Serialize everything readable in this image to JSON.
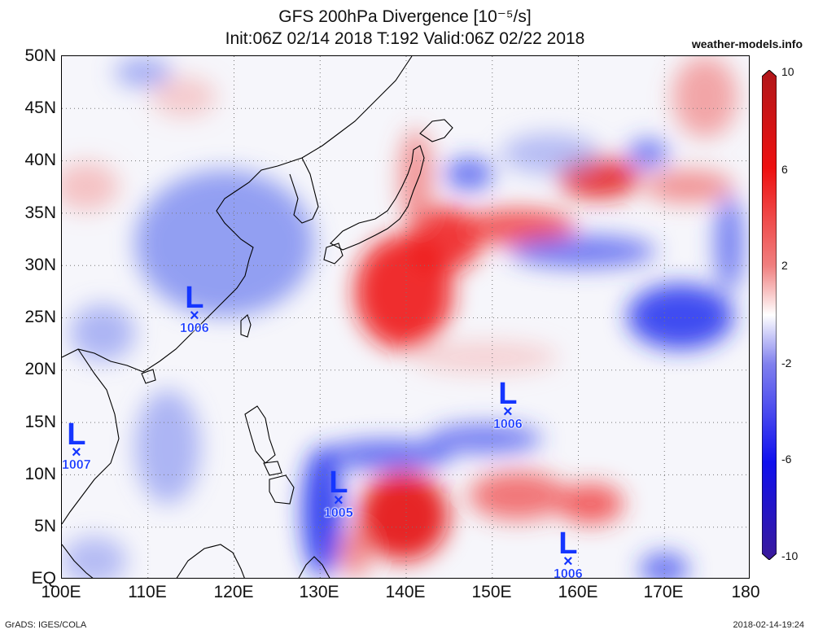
{
  "title_line1": "GFS 200hPa Divergence [10⁻⁵/s]",
  "title_line2": "Init:06Z 02/14 2018 T:192 Valid:06Z 02/22 2018",
  "site": "weather-models.info",
  "y_axis_labels": [
    "50N",
    "45N",
    "40N",
    "35N",
    "30N",
    "25N",
    "20N",
    "15N",
    "10N",
    "5N",
    "EQ"
  ],
  "x_axis_labels": [
    "100E",
    "110E",
    "120E",
    "130E",
    "140E",
    "150E",
    "160E",
    "170E",
    "180"
  ],
  "extent": {
    "lon_min": 100,
    "lon_max": 180,
    "lat_min": 0,
    "lat_max": 50
  },
  "colorbar": {
    "labels": [
      "10",
      "6",
      "2",
      "-2",
      "-6",
      "-10"
    ],
    "colors_top_to_bottom": [
      "#b0171a",
      "#ee1010",
      "#f08080",
      "#ffffff",
      "#8080ee",
      "#1010ee",
      "#3a1a9a"
    ]
  },
  "pressure_lows": [
    {
      "label": "L",
      "pressure": "1006",
      "lon": 116.5,
      "lat": 25.0
    },
    {
      "label": "L",
      "pressure": "1007",
      "lon": 102.5,
      "lat": 12.0
    },
    {
      "label": "L",
      "pressure": "1005",
      "lon": 133.0,
      "lat": 7.5
    },
    {
      "label": "L",
      "pressure": "1006",
      "lon": 152.5,
      "lat": 16.0
    },
    {
      "label": "L",
      "pressure": "1006",
      "lon": 159.5,
      "lat": 1.5
    }
  ],
  "footer_left": "GrADS: IGES/COLA",
  "footer_right": "2018-02-14-19:24"
}
